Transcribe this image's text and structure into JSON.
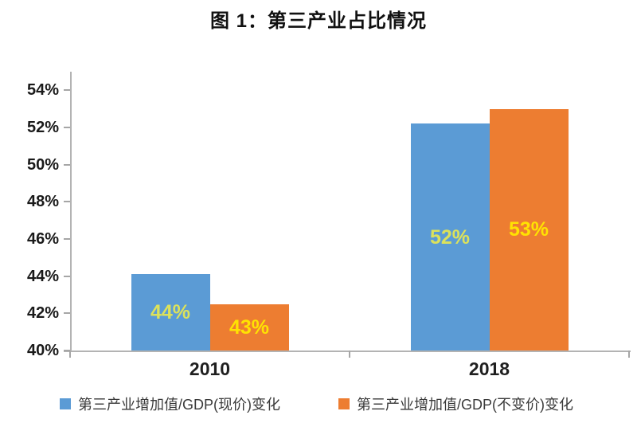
{
  "chart_data": {
    "type": "bar",
    "title": "图 1：第三产业占比情况",
    "categories": [
      "2010",
      "2018"
    ],
    "series": [
      {
        "name": "第三产业增加值/GDP(现价)变化",
        "color": "#5B9BD5",
        "values": [
          44.1,
          52.2
        ],
        "data_labels": [
          "44%",
          "52%"
        ],
        "data_label_color": "#DCE25B"
      },
      {
        "name": "第三产业增加值/GDP(不变价)变化",
        "color": "#ED7D31",
        "values": [
          42.5,
          53.0
        ],
        "data_labels": [
          "43%",
          "53%"
        ],
        "data_label_color": "#FFE202"
      }
    ],
    "y_axis": {
      "min": 40,
      "max": 55,
      "tick_step": 2,
      "tick_labels": [
        "40%",
        "42%",
        "44%",
        "46%",
        "48%",
        "50%",
        "52%",
        "54%"
      ]
    },
    "x_axis": {
      "labels": [
        "2010",
        "2018"
      ]
    },
    "grid": false,
    "legend_position": "bottom",
    "colors": {
      "axis_line": "#b3b3b3",
      "tick": "#a6a6a6",
      "text": "#1a1a1a"
    }
  }
}
